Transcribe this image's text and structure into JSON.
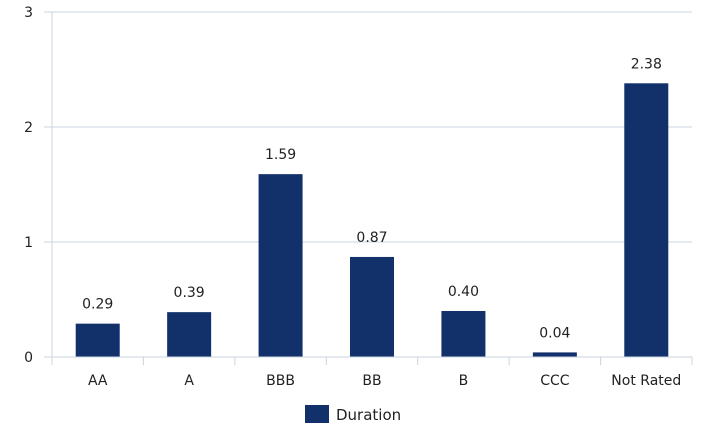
{
  "chart_data": {
    "type": "bar",
    "categories": [
      "AA",
      "A",
      "BBB",
      "BB",
      "B",
      "CCC",
      "Not Rated"
    ],
    "series": [
      {
        "name": "Duration",
        "values": [
          0.29,
          0.39,
          1.59,
          0.87,
          0.4,
          0.04,
          2.38
        ]
      }
    ],
    "data_labels": [
      "0.29",
      "0.39",
      "1.59",
      "0.87",
      "0.40",
      "0.04",
      "2.38"
    ],
    "y_ticks": [
      "0",
      "1",
      "2",
      "3"
    ],
    "ylim": [
      0,
      3
    ],
    "grid": true,
    "legend": "bottom-center",
    "bar_color": "#12306A",
    "grid_color": "#c9d4e0"
  }
}
